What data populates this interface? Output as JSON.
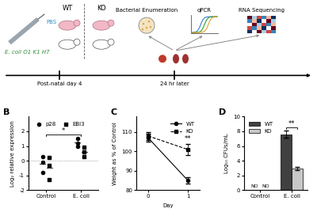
{
  "diagram": {
    "injections": [
      "PBS",
      "E. coli O1 K1 H7"
    ],
    "groups": [
      "WT",
      "KO"
    ],
    "assays": [
      "Bacterial Enumeration",
      "qPCR",
      "RNA Sequencing"
    ],
    "timeline": [
      "Post-natal day 4",
      "24 hr later"
    ]
  },
  "chart_data": [
    {
      "panel": "B",
      "type": "scatter",
      "y_label": "Log₂ relative expression",
      "categories": [
        "Control",
        "E. coli"
      ],
      "series": [
        {
          "name": "p28",
          "marker": "circle",
          "color": "#000000",
          "values": [
            [
              0.3,
              -0.1,
              -0.8
            ],
            [
              1.2,
              1.5,
              1.0
            ]
          ]
        },
        {
          "name": "EBI3",
          "marker": "square",
          "color": "#000000",
          "values": [
            [
              0.2,
              -0.3,
              -1.3
            ],
            [
              0.9,
              0.6,
              0.3
            ]
          ]
        }
      ],
      "ylim": [
        -2,
        3
      ],
      "yticks": [
        -2,
        -1,
        0,
        1,
        2
      ],
      "legend": "upper left",
      "reference_line": 0,
      "significance": [
        {
          "text": "*",
          "between": [
            "Control",
            "E. coli"
          ]
        }
      ]
    },
    {
      "panel": "C",
      "type": "line",
      "x_label": "Day",
      "y_label": "Weight as % of Control",
      "x": [
        0,
        1
      ],
      "series": [
        {
          "name": "WT",
          "color": "#000000",
          "marker": "circle",
          "line_style": "solid",
          "values": [
            107,
            85
          ],
          "errors": [
            2,
            1.5
          ]
        },
        {
          "name": "KO",
          "color": "#000000",
          "marker": "square",
          "line_style": "dashed",
          "values": [
            108,
            101
          ],
          "errors": [
            2,
            3
          ]
        }
      ],
      "xlim": [
        -0.3,
        1.3
      ],
      "xticks": [
        0,
        1
      ],
      "ylim": [
        80,
        118
      ],
      "yticks": [
        80,
        90,
        100,
        110
      ],
      "legend": "upper right",
      "significance": [
        {
          "text": "**",
          "x": 1
        }
      ]
    },
    {
      "panel": "D",
      "type": "bar",
      "y_label": "Log₁₀ CFUs/mL",
      "categories": [
        "Control",
        "E. coli"
      ],
      "series": [
        {
          "name": "WT",
          "color": "#404040",
          "values": [
            null,
            7.6
          ],
          "value_labels": [
            "ND",
            null
          ],
          "errors": [
            null,
            0.5
          ]
        },
        {
          "name": "KO",
          "color": "#c8c8c8",
          "values": [
            null,
            2.9
          ],
          "value_labels": [
            "ND",
            null
          ],
          "errors": [
            null,
            0.2
          ]
        }
      ],
      "ylim": [
        0,
        10
      ],
      "yticks": [
        0,
        2,
        4,
        6,
        8,
        10
      ],
      "legend": "upper left",
      "significance": [
        {
          "text": "**",
          "category": "E. coli"
        }
      ]
    }
  ]
}
